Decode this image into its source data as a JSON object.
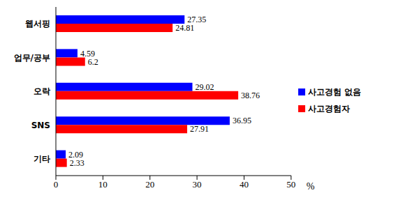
{
  "chart_data": {
    "type": "bar",
    "orientation": "horizontal",
    "x_label": "%",
    "categories": [
      "웹서핑",
      "업무/공부",
      "오락",
      "SNS",
      "기타"
    ],
    "series": [
      {
        "name": "사고경험 없음",
        "color": "#0000ff",
        "values": [
          27.35,
          4.59,
          29.02,
          36.95,
          2.09
        ]
      },
      {
        "name": "사고경험자",
        "color": "#ff0000",
        "values": [
          24.81,
          6.2,
          38.76,
          27.91,
          2.33
        ]
      }
    ],
    "xlim": [
      0,
      50
    ],
    "xticks": [
      0,
      10,
      20,
      30,
      40,
      50
    ],
    "grid": false,
    "legend": "right",
    "data_labels": true
  }
}
